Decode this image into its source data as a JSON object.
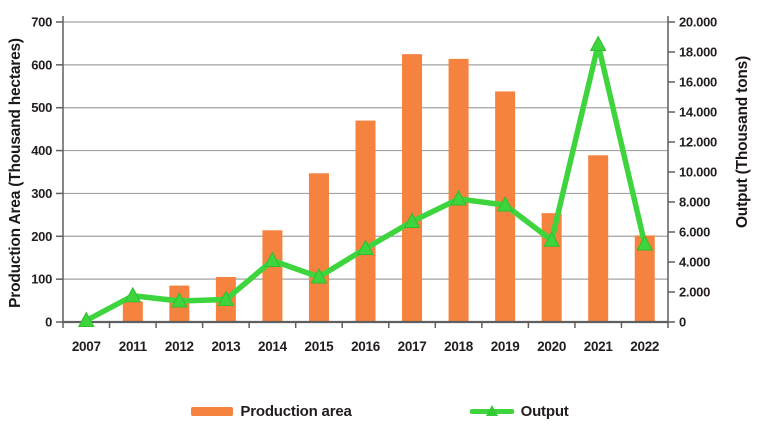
{
  "chart_data": {
    "type": "bar+line combo",
    "categories": [
      "2007",
      "2011",
      "2012",
      "2013",
      "2014",
      "2015",
      "2016",
      "2017",
      "2018",
      "2019",
      "2020",
      "2021",
      "2022"
    ],
    "series": [
      {
        "name": "Production area",
        "type": "bar",
        "axis": "left",
        "values": [
          0,
          48,
          85,
          105,
          214,
          347,
          470,
          625,
          614,
          538,
          254,
          389,
          202
        ]
      },
      {
        "name": "Output",
        "type": "line",
        "axis": "right",
        "values": [
          100,
          1750,
          1400,
          1500,
          4100,
          3000,
          4900,
          6700,
          8200,
          7800,
          5450,
          18500,
          5200
        ]
      }
    ],
    "left_axis": {
      "title": "Production Area (Thousand hectares)",
      "min": 0,
      "max": 700,
      "tick_step": 100,
      "tick_labels": [
        "0",
        "100",
        "200",
        "300",
        "400",
        "500",
        "600",
        "700"
      ]
    },
    "right_axis": {
      "title": "Output (Thousand tons)",
      "min": 0,
      "max": 20000,
      "tick_step": 2000,
      "tick_labels": [
        "0",
        "2.000",
        "4.000",
        "6.000",
        "8.000",
        "10.000",
        "12.000",
        "14.000",
        "16.000",
        "18.000",
        "20.000"
      ]
    },
    "grid": true,
    "legend_position": "bottom"
  },
  "colors": {
    "bar": "#F5823E",
    "line": "#3ED43E",
    "line_edge": "#2FBE2F",
    "grid": "#A3A3A3",
    "axis": "#5F5F5F",
    "text": "#231d1d",
    "background": "#FFFFFF"
  }
}
